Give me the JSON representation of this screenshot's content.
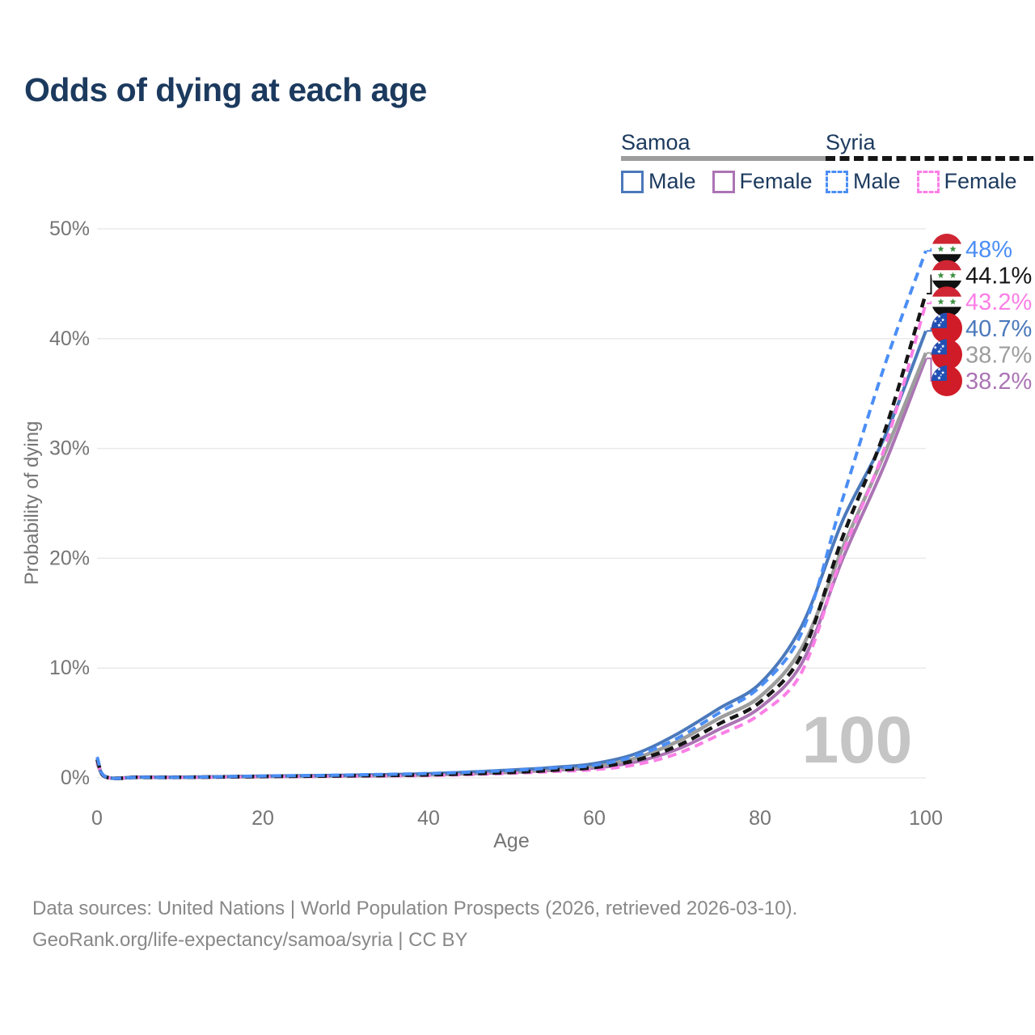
{
  "title": "Odds of dying at each age",
  "legend": {
    "groups": [
      {
        "name": "Samoa",
        "line_style": "solid",
        "underline_color": "#9d9d9d",
        "items": [
          {
            "label": "Male",
            "color": "#4b79bb"
          },
          {
            "label": "Female",
            "color": "#ab74b4"
          }
        ]
      },
      {
        "name": "Syria",
        "line_style": "dashed",
        "underline_color": "#161616",
        "items": [
          {
            "label": "Male",
            "color": "#4b8ef5"
          },
          {
            "label": "Female",
            "color": "#fb7fe6"
          }
        ]
      }
    ]
  },
  "watermark": "100",
  "footer": {
    "line1": "Data sources: United Nations | World Population Prospects (2026, retrieved 2026-03-10).",
    "line2": "GeoRank.org/life-expectancy/samoa/syria | CC BY"
  },
  "chart_data": {
    "type": "line",
    "title": "Odds of dying at each age",
    "xlabel": "Age",
    "ylabel": "Probability of dying",
    "xlim": [
      0,
      100
    ],
    "ylim": [
      0,
      50
    ],
    "grid": true,
    "legend_position": "top-right",
    "x_ticks": [
      {
        "v": 0,
        "label": "0"
      },
      {
        "v": 20,
        "label": "20"
      },
      {
        "v": 40,
        "label": "40"
      },
      {
        "v": 60,
        "label": "60"
      },
      {
        "v": 80,
        "label": "80"
      },
      {
        "v": 100,
        "label": "100"
      }
    ],
    "y_ticks": [
      {
        "v": 0,
        "label": "0%"
      },
      {
        "v": 10,
        "label": "10%"
      },
      {
        "v": 20,
        "label": "20%"
      },
      {
        "v": 30,
        "label": "30%"
      },
      {
        "v": 40,
        "label": "40%"
      },
      {
        "v": 50,
        "label": "50%"
      }
    ],
    "x": [
      0,
      1,
      5,
      10,
      20,
      30,
      40,
      50,
      55,
      60,
      65,
      70,
      75,
      80,
      85,
      90,
      95,
      100
    ],
    "series": [
      {
        "name": "Syria Male",
        "country": "Syria",
        "sex": "Male",
        "color": "#4b8ef5",
        "label_color": "#4b8ef5",
        "dash": true,
        "flag": "syria",
        "end_label": "48%",
        "end_value": 48.0,
        "values": [
          1.9,
          0.11,
          0.06,
          0.05,
          0.17,
          0.26,
          0.4,
          0.68,
          0.9,
          1.15,
          2.0,
          3.6,
          5.9,
          8.3,
          13.2,
          25.5,
          37.5,
          48.0
        ]
      },
      {
        "name": "Syria Total",
        "country": "Syria",
        "sex": "Both",
        "color": "#161616",
        "label_color": "#161616",
        "dash": true,
        "flag": "syria",
        "end_label": "44.1%",
        "end_value": 44.1,
        "values": [
          1.7,
          0.1,
          0.05,
          0.05,
          0.13,
          0.19,
          0.28,
          0.5,
          0.7,
          0.95,
          1.6,
          2.9,
          4.9,
          6.9,
          11.2,
          22.0,
          31.5,
          44.1
        ]
      },
      {
        "name": "Syria Female",
        "country": "Syria",
        "sex": "Female",
        "color": "#fb7fe6",
        "label_color": "#fb7fe6",
        "dash": true,
        "flag": "syria",
        "end_label": "43.2%",
        "end_value": 43.2,
        "values": [
          1.5,
          0.09,
          0.05,
          0.04,
          0.1,
          0.15,
          0.22,
          0.42,
          0.58,
          0.75,
          1.2,
          2.2,
          3.9,
          5.8,
          9.6,
          20.5,
          30.0,
          43.2
        ]
      },
      {
        "name": "Samoa Male",
        "country": "Samoa",
        "sex": "Male",
        "color": "#4b79bb",
        "label_color": "#4b79bb",
        "dash": false,
        "flag": "samoa",
        "end_label": "40.7%",
        "end_value": 40.7,
        "values": [
          1.6,
          0.1,
          0.07,
          0.06,
          0.16,
          0.24,
          0.38,
          0.72,
          0.95,
          1.3,
          2.2,
          4.0,
          6.3,
          8.6,
          13.8,
          23.5,
          31.0,
          40.7
        ]
      },
      {
        "name": "Samoa Total",
        "country": "Samoa",
        "sex": "Both",
        "color": "#9d9d9d",
        "label_color": "#9d9d9d",
        "dash": false,
        "flag": "samoa",
        "end_label": "38.7%",
        "end_value": 38.7,
        "values": [
          1.5,
          0.09,
          0.06,
          0.05,
          0.13,
          0.2,
          0.32,
          0.6,
          0.8,
          1.05,
          1.8,
          3.3,
          5.4,
          7.4,
          11.8,
          21.0,
          29.5,
          38.7
        ]
      },
      {
        "name": "Samoa Female",
        "country": "Samoa",
        "sex": "Female",
        "color": "#ab74b4",
        "label_color": "#ab74b4",
        "dash": false,
        "flag": "samoa",
        "end_label": "38.2%",
        "end_value": 38.2,
        "values": [
          1.3,
          0.08,
          0.05,
          0.04,
          0.1,
          0.16,
          0.26,
          0.5,
          0.7,
          0.9,
          1.45,
          2.6,
          4.4,
          6.4,
          10.4,
          20.0,
          28.5,
          38.2
        ]
      }
    ]
  }
}
